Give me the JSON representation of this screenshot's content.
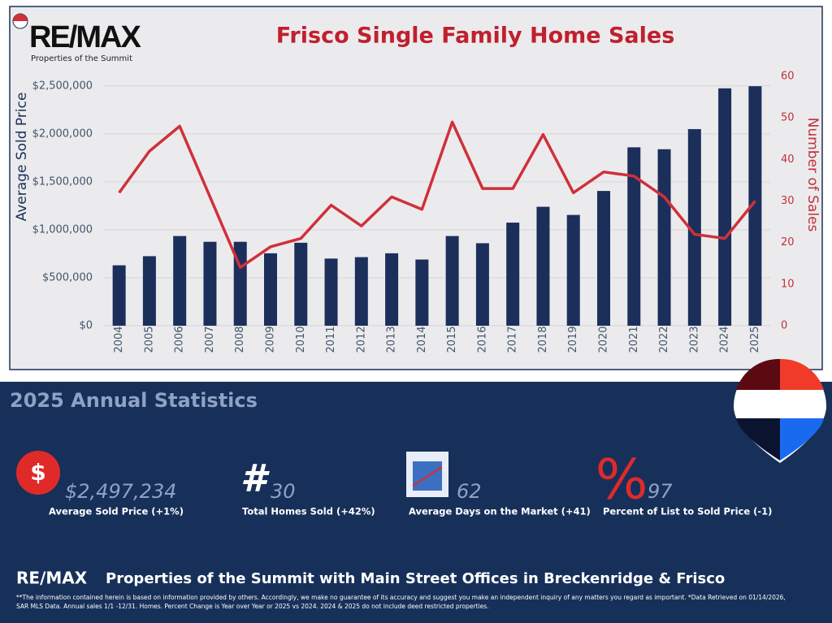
{
  "logo": {
    "brand": "RE/MAX",
    "tagline": "Properties of the Summit"
  },
  "chart_data": {
    "type": "bar",
    "title": "Frisco Single Family Home Sales",
    "y_label": "Average Sold Price",
    "y2_label": "Number of Sales",
    "categories": [
      "2004",
      "2005",
      "2006",
      "2007",
      "2008",
      "2009",
      "2010",
      "2011",
      "2012",
      "2013",
      "2014",
      "2015",
      "2016",
      "2017",
      "2018",
      "2019",
      "2020",
      "2021",
      "2022",
      "2023",
      "2024",
      "2025"
    ],
    "series": [
      {
        "name": "Average Sold Price",
        "type": "bar",
        "color": "#1b2f5a",
        "values": [
          630000,
          725000,
          935000,
          875000,
          875000,
          755000,
          865000,
          700000,
          715000,
          755000,
          690000,
          935000,
          860000,
          1075000,
          1240000,
          1155000,
          1405000,
          1860000,
          1840000,
          2050000,
          2475000,
          2497234
        ]
      },
      {
        "name": "Number of Sales",
        "type": "line",
        "axis": "y2",
        "color": "#d0303a",
        "values": [
          32,
          42,
          48,
          31,
          14,
          19,
          21,
          29,
          24,
          31,
          28,
          49,
          33,
          33,
          46,
          32,
          37,
          36,
          31,
          22,
          21,
          30
        ]
      }
    ],
    "ylim": [
      0,
      2600000
    ],
    "yticks": [
      {
        "value": 0,
        "label": "$0"
      },
      {
        "value": 500000,
        "label": "$500,000"
      },
      {
        "value": 1000000,
        "label": "$1,000,000"
      },
      {
        "value": 1500000,
        "label": "$1,500,000"
      },
      {
        "value": 2000000,
        "label": "$2,000,000"
      },
      {
        "value": 2500000,
        "label": "$2,500,000"
      }
    ],
    "y2lim": [
      0,
      60
    ],
    "y2ticks": [
      0,
      10,
      20,
      30,
      40,
      50,
      60
    ],
    "grid": true
  },
  "stats": {
    "title": "2025 Annual Statistics",
    "items": [
      {
        "value": "$2,497,234",
        "label": "Average Sold Price (+1%)"
      },
      {
        "value": "30",
        "label": "Total Homes Sold (+42%)"
      },
      {
        "value": "62",
        "label": "Average Days on the Market (+41)"
      },
      {
        "value": "97",
        "label": "Percent of List to Sold Price (-1)"
      }
    ]
  },
  "footer": {
    "brand": "RE/MAX",
    "text": "Properties of the Summit with Main Street Offices in Breckenridge & Frisco",
    "notes": [
      "**The information contained herein is based on information provided by others. Accordingly, we make no guarantee of its accuracy and suggest you make an independent inquiry of any matters you regard as important. *Data Retrieved on 01/14/2026,",
      "SAR MLS Data. Annual sales 1/1 -12/31. Homes. Percent Change is Year over Year or 2025 vs 2024. 2024 & 2025 do not include deed restricted properties."
    ]
  }
}
